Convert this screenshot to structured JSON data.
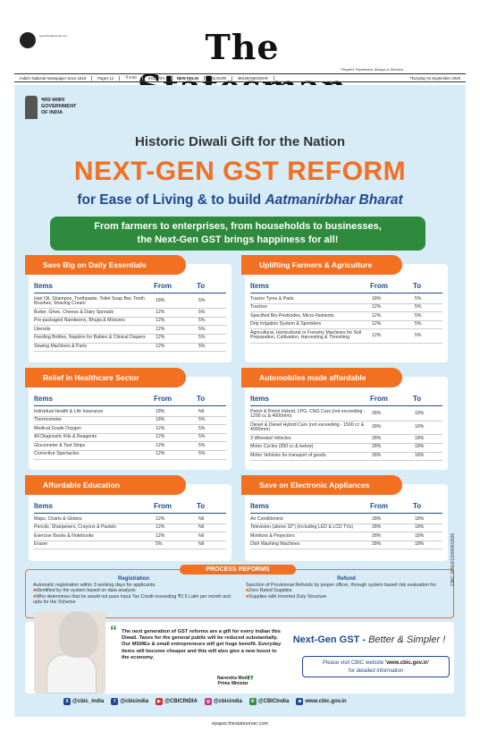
{
  "masthead": {
    "title": "The Statesman",
    "tagline": "People's Parliament, Always in Session",
    "site": "www.thestatesman.com"
  },
  "dateline": [
    "India's National Newspaper since 1818",
    "Pages 12",
    "₹ 5.00",
    "KOLKATA",
    "NEW DELHI",
    "SILIGURI",
    "BHUBANESWAR",
    "Thursday 04 September 2025"
  ],
  "ad": {
    "gov": {
      "line1": "भारत सरकार",
      "line2": "GOVERNMENT",
      "line3": "OF INDIA"
    },
    "heading_top": "Historic Diwali Gift for the Nation",
    "heading_main": "NEXT-GEN GST REFORM",
    "heading_sub": "for Ease of Living & to build",
    "heading_sub_em": "Aatmanirbhar Bharat",
    "banner_line1": "From farmers to enterprises, from households to businesses,",
    "banner_line2": "the Next-Gen GST brings happiness for all!",
    "col_items": "Items",
    "col_from": "From",
    "col_to": "To",
    "cards": [
      {
        "title": "Save Big on Daily Essentials",
        "rows": [
          [
            "Hair Oil, Shampoo, Toothpaste, Toilet Soap Bar, Tooth Brushes, Shaving Cream",
            "18%",
            "5%"
          ],
          [
            "Butter, Ghee, Cheese & Dairy Spreads",
            "12%",
            "5%"
          ],
          [
            "Pre-packaged Namkeens, Bhujia & Mixtures",
            "12%",
            "5%"
          ],
          [
            "Utensils",
            "12%",
            "5%"
          ],
          [
            "Feeding Bottles, Napkins for Babies & Clinical Diapers",
            "12%",
            "5%"
          ],
          [
            "Sewing Machines & Parts",
            "12%",
            "5%"
          ]
        ]
      },
      {
        "title": "Uplifting Farmers & Agriculture",
        "rows": [
          [
            "Tractor Tyres & Parts",
            "18%",
            "5%"
          ],
          [
            "Tractors",
            "12%",
            "5%"
          ],
          [
            "Specified Bio-Pesticides, Micro-Nutrients",
            "12%",
            "5%"
          ],
          [
            "Drip Irrigation System & Sprinklers",
            "12%",
            "5%"
          ],
          [
            "Agricultural, Horticultural or Forestry Machines for Soil Preparation, Cultivation, Harvesting & Threshing",
            "12%",
            "5%"
          ]
        ]
      },
      {
        "title": "Relief in Healthcare Sector",
        "rows": [
          [
            "Individual Health & Life Insurance",
            "18%",
            "Nil"
          ],
          [
            "Thermometer",
            "18%",
            "5%"
          ],
          [
            "Medical Grade Oxygen",
            "12%",
            "5%"
          ],
          [
            "All Diagnostic Kits & Reagents",
            "12%",
            "5%"
          ],
          [
            "Glucometer & Test Strips",
            "12%",
            "5%"
          ],
          [
            "Corrective Spectacles",
            "12%",
            "5%"
          ]
        ]
      },
      {
        "title": "Automobiles made affordable",
        "rows": [
          [
            "Petrol & Petrol Hybrid, LPG, CNG Cars (not exceeding - 1200 cc & 4000mm)",
            "28%",
            "18%"
          ],
          [
            "Diesel & Diesel Hybrid Cars (not exceeding - 1500 cc & 4000mm)",
            "28%",
            "18%"
          ],
          [
            "3 Wheeled Vehicles",
            "28%",
            "18%"
          ],
          [
            "Motor Cycles (350 cc & below)",
            "28%",
            "18%"
          ],
          [
            "Motor Vehicles for transport of goods",
            "28%",
            "18%"
          ]
        ]
      },
      {
        "title": "Affordable Education",
        "rows": [
          [
            "Maps, Charts & Globes",
            "12%",
            "Nil"
          ],
          [
            "Pencils, Sharpeners, Crayons & Pastels",
            "12%",
            "Nil"
          ],
          [
            "Exercise Books & Notebooks",
            "12%",
            "Nil"
          ],
          [
            "Eraser",
            "5%",
            "Nil"
          ]
        ]
      },
      {
        "title": "Save on Electronic Appliances",
        "rows": [
          [
            "Air Conditioners",
            "28%",
            "18%"
          ],
          [
            "Television (above 32\") (including LED & LCD TVs)",
            "28%",
            "18%"
          ],
          [
            "Monitors & Projectors",
            "28%",
            "18%"
          ],
          [
            "Dish Washing Machines",
            "28%",
            "18%"
          ]
        ]
      }
    ],
    "process": {
      "title": "PROCESS REFORMS",
      "reg_title": "Registration",
      "reg_intro": "Automatic registration within 3 working days for applicants:",
      "reg_b1": "Identified by the system based on data analysis",
      "reg_b2": "Who determines that he would not pass Input Tax Credit exceeding ₹2.5 Lakh per month and opts for the Scheme",
      "ref_title": "Refund",
      "ref_intro": "Sanction of Provisional Refunds by proper officer, through system based risk evaluation for:",
      "ref_b1": "Zero Rated Supplies",
      "ref_b2": "Supplies with Inverted Duty Structure"
    },
    "quote": "The next generation of GST reforms are a gift for every Indian this Diwali. Taxes for the general public will be reduced substantially. Our MSMEs & small entrepreneurs will get huge benefit. Everyday items will become cheaper and this will also give a new boost to the economy.",
    "pm_name": "Narendra Modi",
    "pm_title": "Prime Minister",
    "ng_title": "Next-Gen GST -",
    "ng_tag": "Better & Simpler !",
    "visit_line1": "Please visit CBIC website",
    "visit_site": "'www.cbic.gov.in'",
    "visit_line2": "for detailed information",
    "social": [
      "@cbic_india",
      "@cbicindia",
      "@CBICINDIA",
      "@cbicindia",
      "@CBICIndia",
      "www.cbic.gov.in"
    ],
    "code": "CBIC 15502/13/0006/2526"
  },
  "footer": "epaper.thestatesman.com"
}
